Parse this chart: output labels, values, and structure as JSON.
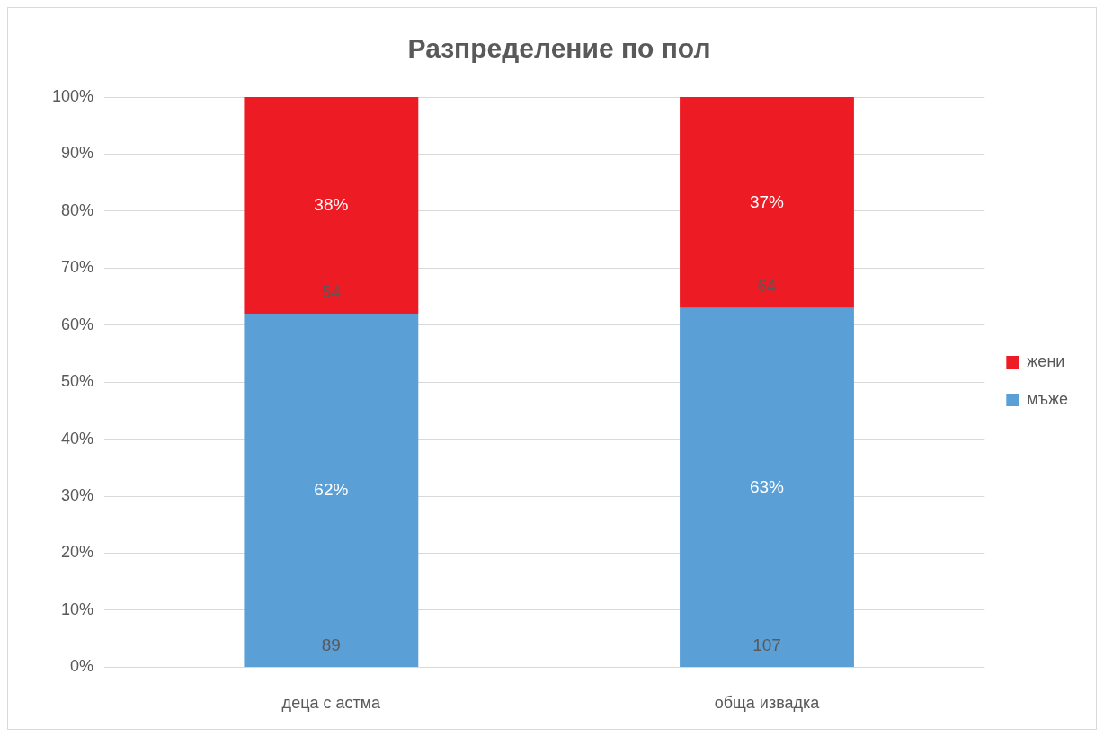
{
  "chart_data": {
    "type": "bar",
    "title": "Разпределение по пол",
    "categories": [
      "деца с астма",
      "обща извадка"
    ],
    "stacked": true,
    "series": [
      {
        "name": "мъже",
        "color": "#5b9fd7",
        "values": [
          62,
          63
        ],
        "value_labels": [
          "62%",
          "63%"
        ]
      },
      {
        "name": "жени",
        "color": "#ed1c24",
        "values": [
          38,
          37
        ],
        "value_labels": [
          "38%",
          "37%"
        ]
      }
    ],
    "ylim": [
      0,
      100
    ],
    "yticks": [
      {
        "value": 0,
        "label": "0%"
      },
      {
        "value": 10,
        "label": "10%"
      },
      {
        "value": 20,
        "label": "20%"
      },
      {
        "value": 30,
        "label": "30%"
      },
      {
        "value": 40,
        "label": "40%"
      },
      {
        "value": 50,
        "label": "50%"
      },
      {
        "value": 60,
        "label": "60%"
      },
      {
        "value": 70,
        "label": "70%"
      },
      {
        "value": 80,
        "label": "80%"
      },
      {
        "value": 90,
        "label": "90%"
      },
      {
        "value": 100,
        "label": "100%"
      }
    ],
    "grid": "y",
    "legend": "right",
    "annotations": [
      {
        "text": "89",
        "x": "деца с астма",
        "y": 0
      },
      {
        "text": "54",
        "x": "деца с астма",
        "y": 62
      },
      {
        "text": "107",
        "x": "обща извадка",
        "y": 0
      },
      {
        "text": "64",
        "x": "обща извадка",
        "y": 63
      }
    ]
  }
}
